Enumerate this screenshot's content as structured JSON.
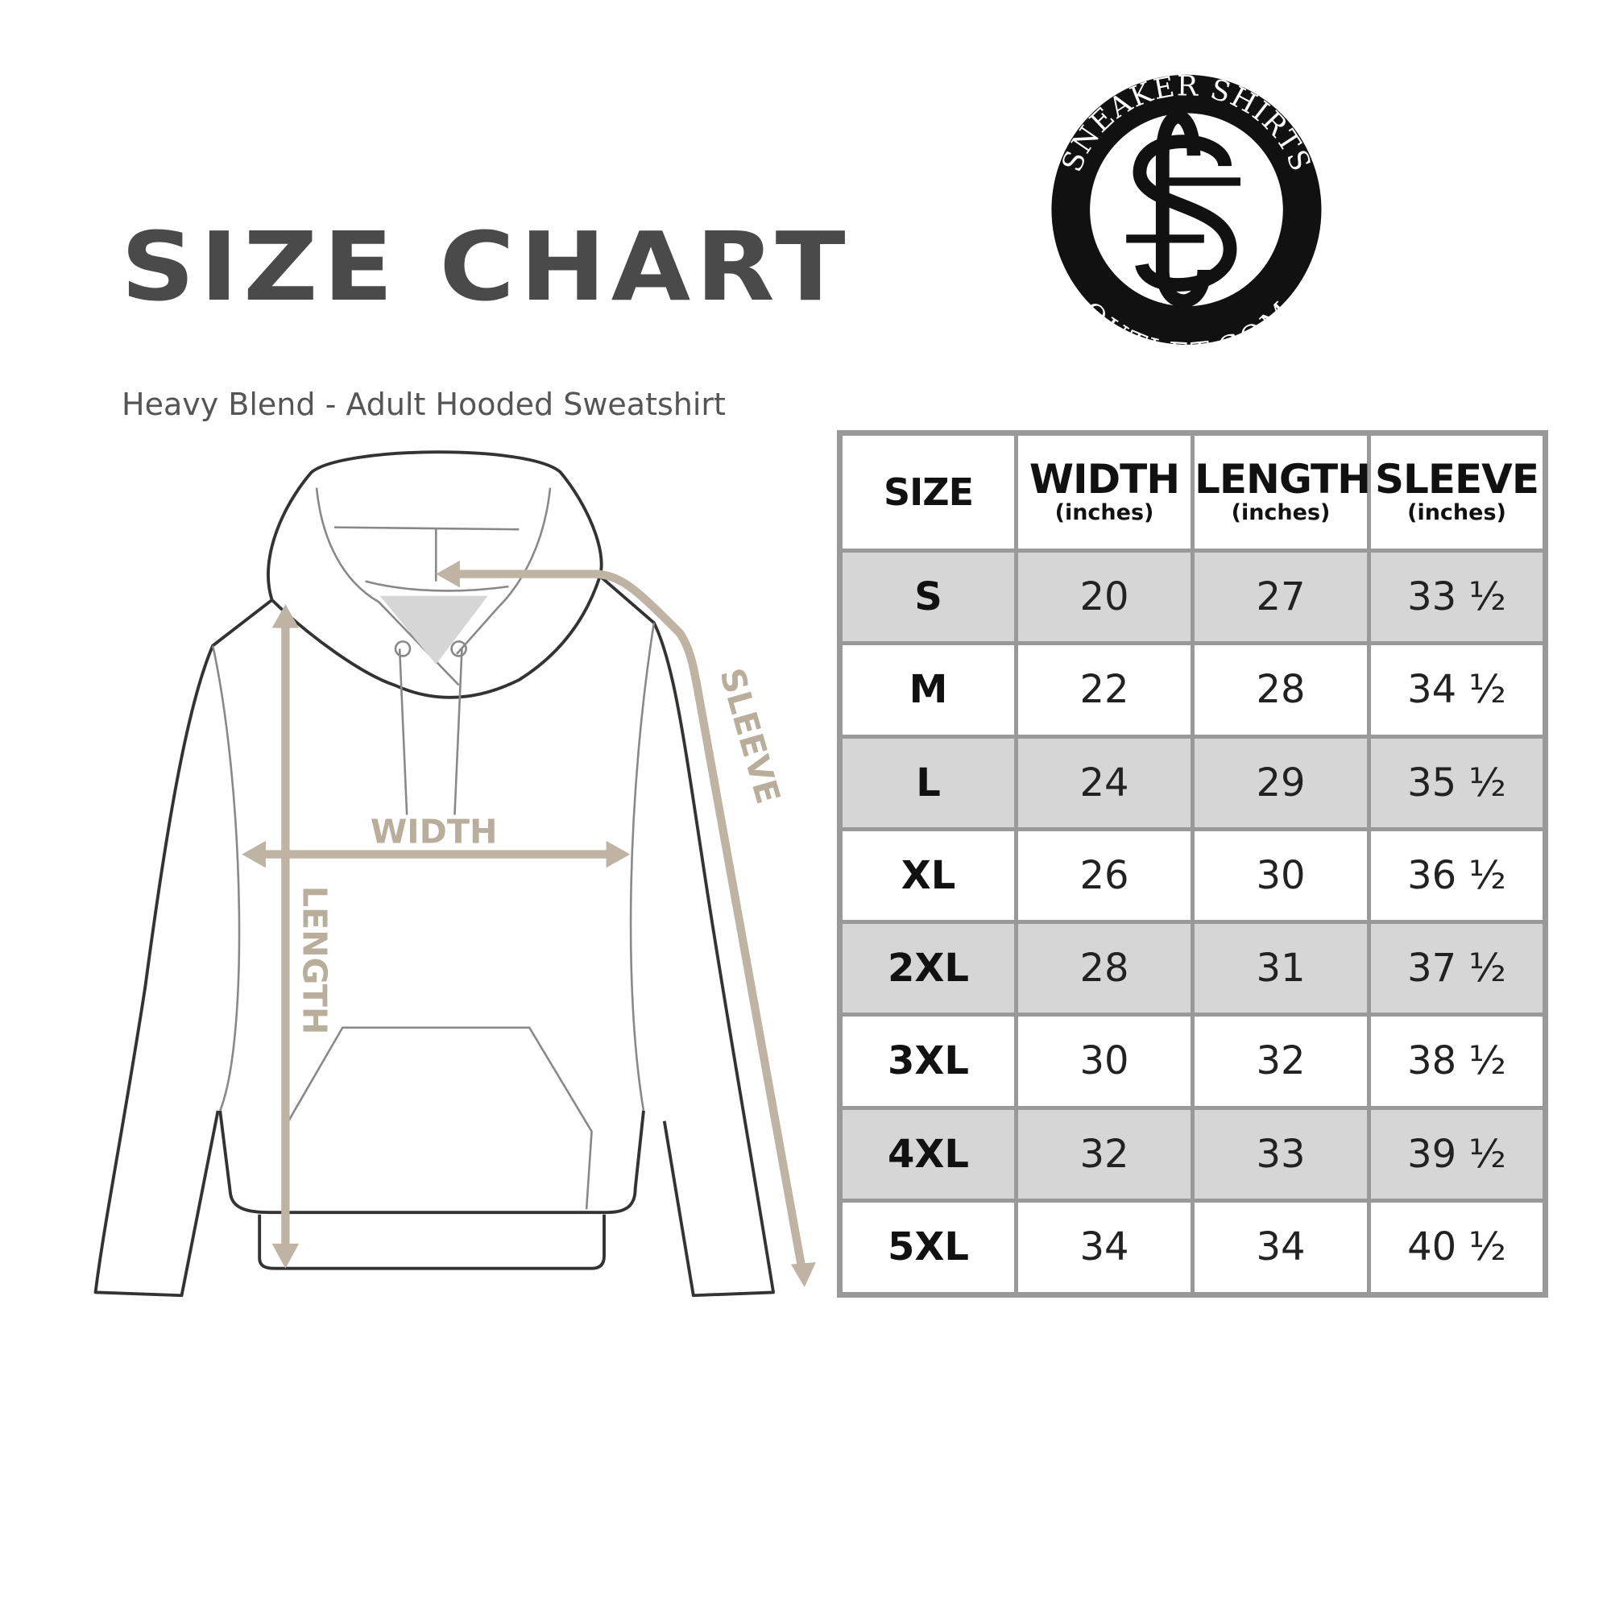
{
  "header": {
    "title": "SIZE CHART",
    "subtitle": "Heavy Blend - Adult Hooded Sweatshirt"
  },
  "logo": {
    "top_text": "SNEAKER SHIRTS",
    "bottom_text": "OUTLET.COM",
    "monogram": "SS"
  },
  "diagram": {
    "width_label": "WIDTH",
    "length_label": "LENGTH",
    "sleeve_label": "SLEEVE",
    "arrow_color": "#bfb3a3",
    "outline_color": "#333333"
  },
  "table": {
    "columns": [
      {
        "label": "SIZE",
        "unit": ""
      },
      {
        "label": "WIDTH",
        "unit": "(inches)"
      },
      {
        "label": "LENGTH",
        "unit": "(inches)"
      },
      {
        "label": "SLEEVE",
        "unit": "(inches)"
      }
    ],
    "rows": [
      [
        "S",
        "20",
        "27",
        "33 ½"
      ],
      [
        "M",
        "22",
        "28",
        "34 ½"
      ],
      [
        "L",
        "24",
        "29",
        "35 ½"
      ],
      [
        "XL",
        "26",
        "30",
        "36 ½"
      ],
      [
        "2XL",
        "28",
        "31",
        "37 ½"
      ],
      [
        "3XL",
        "30",
        "32",
        "38 ½"
      ],
      [
        "4XL",
        "32",
        "33",
        "39 ½"
      ],
      [
        "5XL",
        "34",
        "34",
        "40 ½"
      ]
    ],
    "stripe_color": "#d6d6d6",
    "border_color": "#999999"
  }
}
